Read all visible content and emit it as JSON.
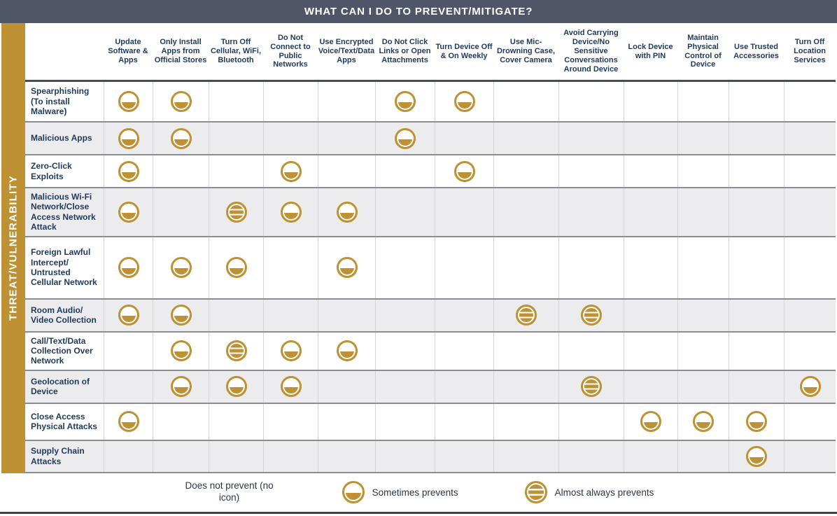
{
  "title": "WHAT CAN I DO TO PREVENT/MITIGATE?",
  "side_label": "THREAT/VULNERABILITY",
  "columns": [
    "Update Software & Apps",
    "Only Install Apps from Official Stores",
    "Turn Off Cellular, WiFi, Bluetooth",
    "Do Not Connect to Public Networks",
    "Use Encrypted Voice/Text/Data Apps",
    "Do Not Click Links or Open Attachments",
    "Turn Device Off & On Weekly",
    "Use Mic-Drowning Case, Cover Camera",
    "Avoid Carrying Device/No Sensitive Conversations Around Device",
    "Lock Device with PIN",
    "Maintain Physical Control of Device",
    "Use Trusted Accessories",
    "Turn Off Location Services"
  ],
  "icon_meanings": {
    "sometimes": "Sometimes prevents",
    "almost": "Almost always prevents",
    "none": "Does not prevent"
  },
  "rows": [
    {
      "label": "Spearphishing (To install Malware)",
      "cells": [
        {
          "col": 0,
          "icon": "sometimes"
        },
        {
          "col": 1,
          "icon": "sometimes"
        },
        {
          "col": 5,
          "icon": "sometimes"
        },
        {
          "col": 6,
          "icon": "sometimes"
        }
      ]
    },
    {
      "label": "Malicious Apps",
      "cells": [
        {
          "col": 0,
          "icon": "sometimes"
        },
        {
          "col": 1,
          "icon": "sometimes"
        },
        {
          "col": 5,
          "icon": "sometimes"
        }
      ]
    },
    {
      "label": "Zero-Click Exploits",
      "cells": [
        {
          "col": 0,
          "icon": "sometimes"
        },
        {
          "col": 3,
          "icon": "sometimes"
        },
        {
          "col": 6,
          "icon": "sometimes"
        }
      ]
    },
    {
      "label": "Malicious Wi-Fi Network/Close Access Network Attack",
      "cells": [
        {
          "col": 0,
          "icon": "sometimes"
        },
        {
          "col": 2,
          "icon": "almost"
        },
        {
          "col": 3,
          "icon": "sometimes"
        },
        {
          "col": 4,
          "icon": "sometimes"
        }
      ]
    },
    {
      "label": "Foreign Lawful Intercept/ Untrusted Cellular Network",
      "cells": [
        {
          "col": 0,
          "icon": "sometimes"
        },
        {
          "col": 1,
          "icon": "sometimes"
        },
        {
          "col": 2,
          "icon": "sometimes"
        },
        {
          "col": 4,
          "icon": "sometimes"
        }
      ]
    },
    {
      "label": "Room Audio/ Video Collection",
      "cells": [
        {
          "col": 0,
          "icon": "sometimes"
        },
        {
          "col": 1,
          "icon": "sometimes"
        },
        {
          "col": 7,
          "icon": "almost"
        },
        {
          "col": 8,
          "icon": "almost"
        }
      ]
    },
    {
      "label": "Call/Text/Data Collection Over Network",
      "cells": [
        {
          "col": 1,
          "icon": "sometimes"
        },
        {
          "col": 2,
          "icon": "almost"
        },
        {
          "col": 3,
          "icon": "sometimes"
        },
        {
          "col": 4,
          "icon": "sometimes"
        }
      ]
    },
    {
      "label": "Geolocation of Device",
      "cells": [
        {
          "col": 1,
          "icon": "sometimes"
        },
        {
          "col": 2,
          "icon": "sometimes"
        },
        {
          "col": 3,
          "icon": "sometimes"
        },
        {
          "col": 8,
          "icon": "almost"
        },
        {
          "col": 12,
          "icon": "sometimes"
        }
      ]
    },
    {
      "label": "Close Access Physical Attacks",
      "cells": [
        {
          "col": 0,
          "icon": "sometimes"
        },
        {
          "col": 9,
          "icon": "sometimes"
        },
        {
          "col": 10,
          "icon": "sometimes"
        },
        {
          "col": 11,
          "icon": "sometimes"
        }
      ]
    },
    {
      "label": "Supply Chain Attacks",
      "cells": [
        {
          "col": 11,
          "icon": "sometimes"
        }
      ]
    }
  ],
  "legend": [
    {
      "icon": "none",
      "label": "Does not prevent (no icon)"
    },
    {
      "icon": "sometimes",
      "label": "Sometimes prevents"
    },
    {
      "icon": "almost",
      "label": "Almost always prevents"
    }
  ],
  "colors": {
    "gold": "#be9134",
    "title_bar": "#4e5667",
    "text": "#1f3a5c",
    "row_alt": "#ececee"
  }
}
